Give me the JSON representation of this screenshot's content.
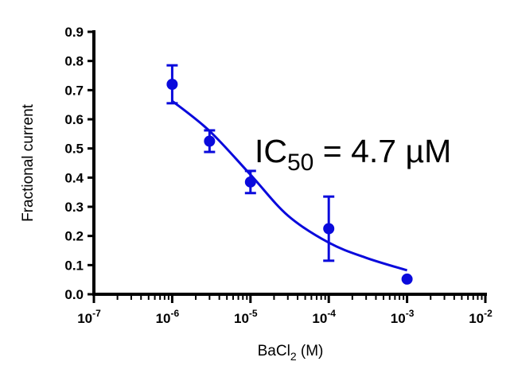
{
  "chart_data": {
    "type": "scatter",
    "xlabel": "BaCl",
    "xlabel_sub": "2",
    "xlabel_unit": " (M)",
    "ylabel": "Fractional current",
    "xscale": "log",
    "xlim": [
      1e-07,
      0.01
    ],
    "ylim": [
      0,
      0.9
    ],
    "x_ticks": [
      {
        "base": "10",
        "exp": "-7",
        "value": 1e-07
      },
      {
        "base": "10",
        "exp": "-6",
        "value": 1e-06
      },
      {
        "base": "10",
        "exp": "-5",
        "value": 1e-05
      },
      {
        "base": "10",
        "exp": "-4",
        "value": 0.0001
      },
      {
        "base": "10",
        "exp": "-3",
        "value": 0.001
      },
      {
        "base": "10",
        "exp": "-2",
        "value": 0.01
      }
    ],
    "y_ticks": [
      "0.0",
      "0.1",
      "0.2",
      "0.3",
      "0.4",
      "0.5",
      "0.6",
      "0.7",
      "0.8",
      "0.9"
    ],
    "grid": false,
    "color": "#0a0adc",
    "points": [
      {
        "x": 1e-06,
        "y": 0.72,
        "err": 0.065
      },
      {
        "x": 3e-06,
        "y": 0.525,
        "err": 0.037
      },
      {
        "x": 1e-05,
        "y": 0.385,
        "err": 0.038
      },
      {
        "x": 0.0001,
        "y": 0.225,
        "err": 0.11
      },
      {
        "x": 0.001,
        "y": 0.052,
        "err": 0
      }
    ],
    "fit_curve": [
      [
        1e-06,
        0.663
      ],
      [
        3e-06,
        0.56
      ],
      [
        1e-05,
        0.41
      ],
      [
        3e-05,
        0.27
      ],
      [
        0.0001,
        0.177
      ],
      [
        0.0003,
        0.125
      ],
      [
        0.001,
        0.082
      ]
    ],
    "annotation": {
      "prefix": "IC",
      "sub": "50",
      "suffix": " = 4.7 µM"
    }
  }
}
